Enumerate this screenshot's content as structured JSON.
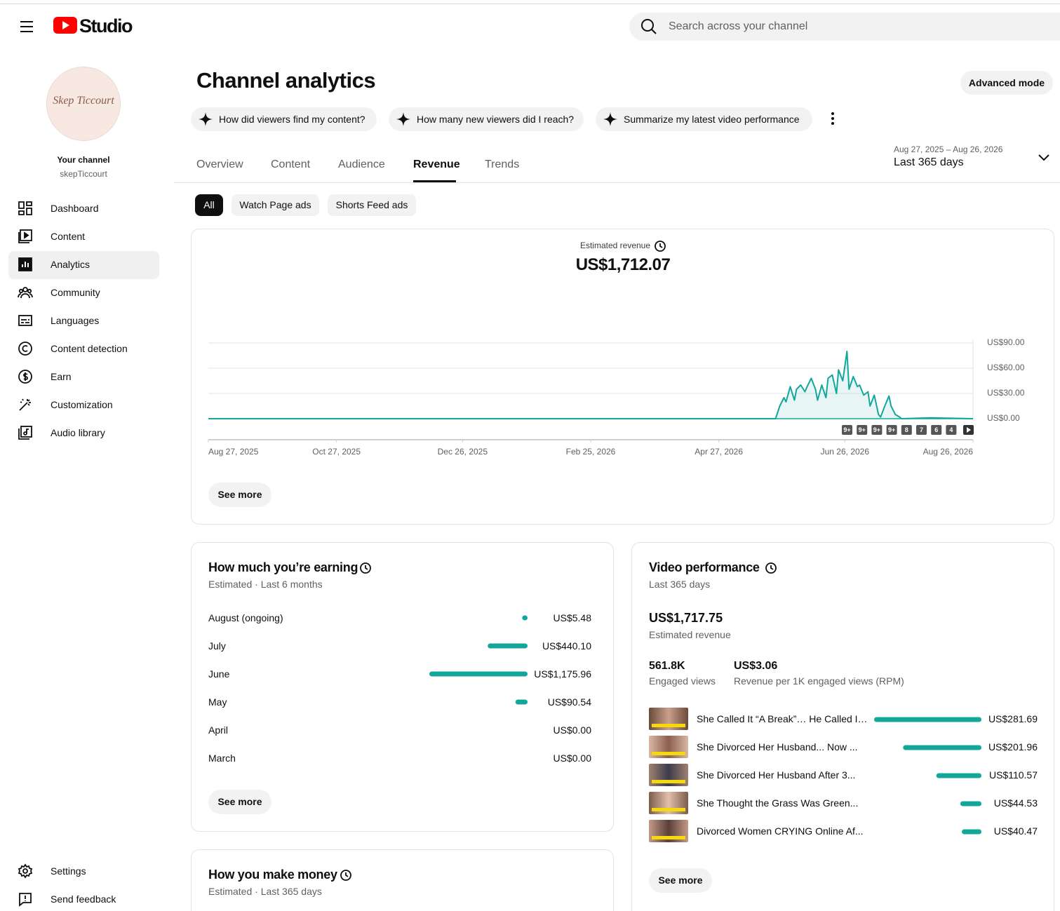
{
  "header": {
    "logo": "Studio",
    "search_placeholder": "Search across your channel"
  },
  "sidebar": {
    "avatar_text": "Skep Ticcourt",
    "channel_label": "Your channel",
    "channel_name": "skepTiccourt",
    "nav": [
      "Dashboard",
      "Content",
      "Analytics",
      "Community",
      "Languages",
      "Content detection",
      "Earn",
      "Customization",
      "Audio library"
    ],
    "footer_nav": [
      "Settings",
      "Send feedback"
    ]
  },
  "page": {
    "title": "Channel analytics",
    "advanced_mode": "Advanced mode",
    "prompts": [
      "How did viewers find my content?",
      "How many new viewers did I reach?",
      "Summarize my latest video performance"
    ],
    "tabs": [
      "Overview",
      "Content",
      "Audience",
      "Revenue",
      "Trends"
    ],
    "date_range": "Aug 27, 2025 – Aug 26, 2026",
    "period": "Last 365 days",
    "filters": [
      "All",
      "Watch Page ads",
      "Shorts Feed ads"
    ],
    "see_more": "See more"
  },
  "chart_data": {
    "type": "line",
    "title": "Estimated revenue",
    "total": "US$1,712.07",
    "color": "#13a79b",
    "x": [
      "Aug 27, 2025",
      "May 24, 2026",
      "May 26, 2026",
      "May 28, 2026",
      "May 29, 2026",
      "May 31, 2026",
      "Jun 2, 2026",
      "Jun 3, 2026",
      "Jun 5, 2026",
      "Jun 7, 2026",
      "Jun 8, 2026",
      "Jun 10, 2026",
      "Jun 12, 2026",
      "Jun 13, 2026",
      "Jun 15, 2026",
      "Jun 17, 2026",
      "Jun 18, 2026",
      "Jun 20, 2026",
      "Jun 22, 2026",
      "Jun 23, 2026",
      "Jun 25, 2026",
      "Jun 27, 2026",
      "Jun 28, 2026",
      "Jun 30, 2026",
      "Jul 2, 2026",
      "Jul 3, 2026",
      "Jul 5, 2026",
      "Jul 7, 2026",
      "Jul 8, 2026",
      "Jul 10, 2026",
      "Jul 12, 2026",
      "Jul 13, 2026",
      "Jul 15, 2026",
      "Jul 17, 2026",
      "Jul 18, 2026",
      "Jul 20, 2026",
      "Jul 22, 2026",
      "Jul 23, 2026",
      "Aug 6, 2026",
      "Aug 26, 2026"
    ],
    "values": [
      0,
      0,
      15,
      25,
      20,
      38,
      22,
      35,
      40,
      32,
      38,
      48,
      35,
      22,
      40,
      25,
      48,
      52,
      30,
      58,
      45,
      80,
      35,
      50,
      38,
      40,
      28,
      32,
      15,
      28,
      5,
      2,
      15,
      27,
      15,
      5,
      2,
      0,
      1,
      0
    ],
    "xlim": [
      "Aug 27, 2025",
      "Aug 26, 2026"
    ],
    "xticks": [
      "Aug 27, 2025",
      "Oct 27, 2025",
      "Dec 26, 2025",
      "Feb 25, 2026",
      "Apr 27, 2026",
      "Jun 26, 2026",
      "Aug 26, 2026"
    ],
    "ylim": [
      0,
      90
    ],
    "yticks": [
      {
        "value": 0,
        "label": "US$0.00"
      },
      {
        "value": 30,
        "label": "US$30.00"
      },
      {
        "value": 60,
        "label": "US$60.00"
      },
      {
        "value": 90,
        "label": "US$90.00"
      }
    ],
    "grid": true,
    "markers": [
      "9+",
      "9+",
      "9+",
      "9+",
      "8",
      "7",
      "6",
      "4"
    ]
  },
  "earnings": {
    "title": "How much you’re earning",
    "subtitle": "Estimated · Last 6 months",
    "color": "#13a79b",
    "rows": [
      {
        "label": "August (ongoing)",
        "value": 5.48,
        "value_label": "US$5.48"
      },
      {
        "label": "July",
        "value": 440.1,
        "value_label": "US$440.10"
      },
      {
        "label": "June",
        "value": 1175.96,
        "value_label": "US$1,175.96"
      },
      {
        "label": "May",
        "value": 90.54,
        "value_label": "US$90.54"
      },
      {
        "label": "April",
        "value": 0,
        "value_label": "US$0.00"
      },
      {
        "label": "March",
        "value": 0,
        "value_label": "US$0.00"
      }
    ]
  },
  "video_performance": {
    "title": "Video performance",
    "subtitle": "Last 365 days",
    "total": "US$1,717.75",
    "total_label": "Estimated revenue",
    "color": "#13a79b",
    "stats": [
      {
        "value": "561.8K",
        "label": "Engaged views"
      },
      {
        "value": "US$3.06",
        "label": "Revenue per 1K engaged views (RPM)"
      }
    ],
    "videos": [
      {
        "title": "She Called It “A Break”… He Called I…",
        "value": 281.69,
        "value_label": "US$281.69"
      },
      {
        "title": "She Divorced Her Husband... Now ...",
        "value": 201.96,
        "value_label": "US$201.96"
      },
      {
        "title": "She Divorced Her Husband After 3...",
        "value": 110.57,
        "value_label": "US$110.57"
      },
      {
        "title": "She Thought the Grass Was Green...",
        "value": 44.53,
        "value_label": "US$44.53"
      },
      {
        "title": "Divorced Women CRYING Online Af...",
        "value": 40.47,
        "value_label": "US$40.47"
      }
    ]
  },
  "money": {
    "title": "How you make money",
    "subtitle": "Estimated · Last 365 days"
  }
}
